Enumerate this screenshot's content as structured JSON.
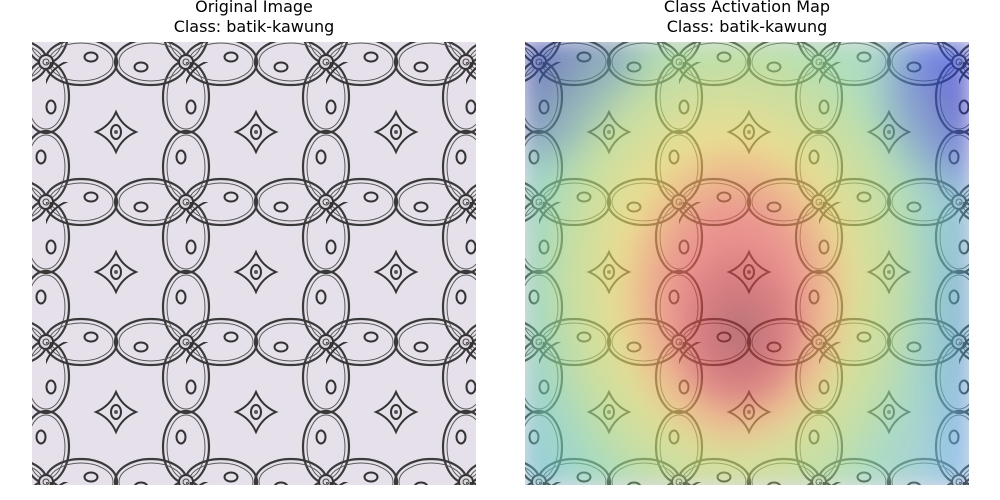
{
  "panels": {
    "left": {
      "title": "Original Image",
      "subtitle": "Class: batik-kawung"
    },
    "right": {
      "title": "Class Activation Map",
      "subtitle": "Class: batik-kawung"
    }
  },
  "colors": {
    "background": "#ffffff",
    "fabric": "#e6e0ea",
    "ink": "#3a3a3a",
    "heat_low": "#1d2aa8",
    "heat_mid": "#f0db5a",
    "heat_high": "#9b3030"
  }
}
